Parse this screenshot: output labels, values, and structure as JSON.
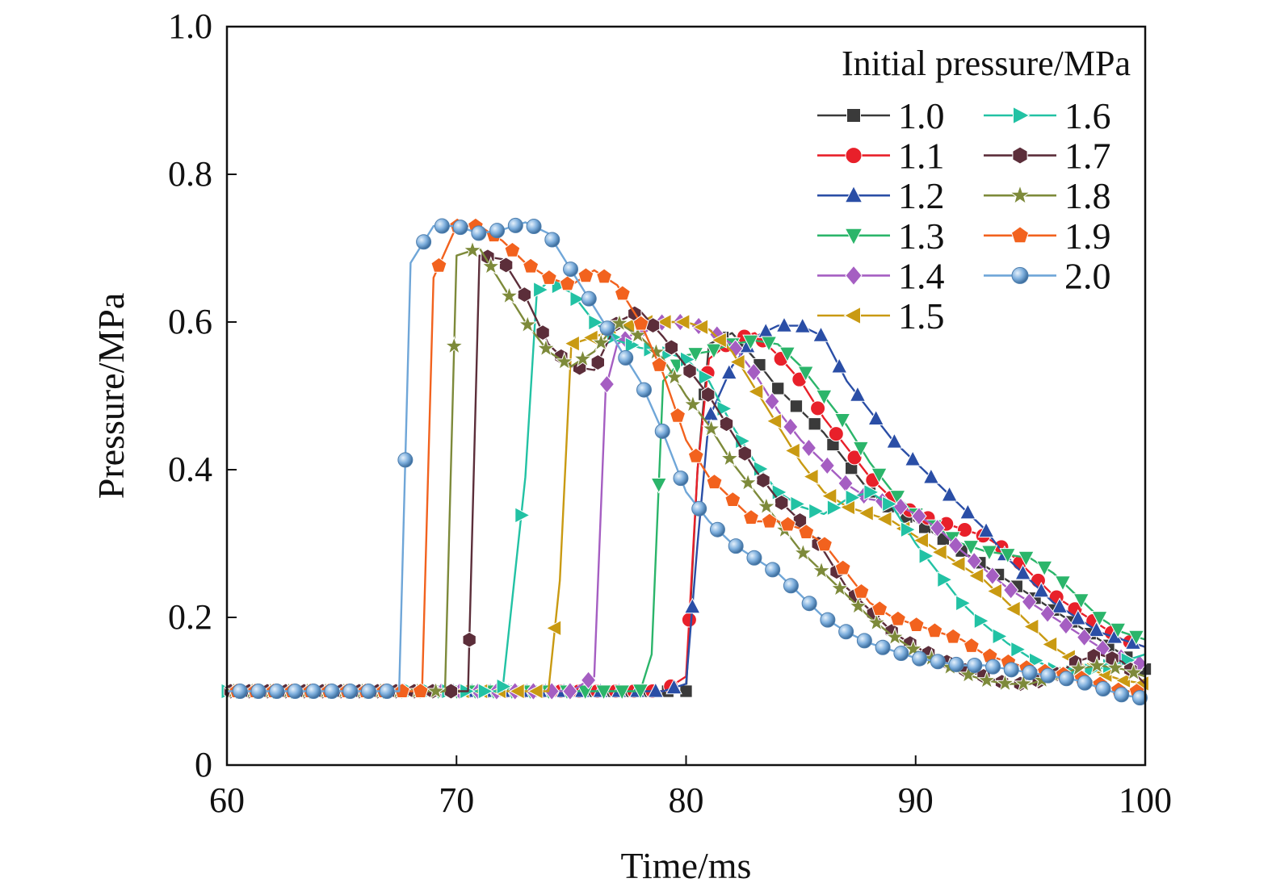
{
  "chart_data": {
    "type": "line",
    "xlabel": "Time/ms",
    "ylabel": "Pressure/MPa",
    "xlim": [
      60,
      100
    ],
    "ylim": [
      0,
      1.0
    ],
    "x_ticks": [
      60,
      70,
      80,
      90,
      100
    ],
    "x_tick_labels": [
      "60",
      "70",
      "80",
      "90",
      "100"
    ],
    "y_ticks": [
      0,
      0.2,
      0.4,
      0.6,
      0.8,
      1.0
    ],
    "y_tick_labels": [
      "0",
      "0.2",
      "0.4",
      "0.6",
      "0.8",
      "1.0"
    ],
    "grid": false,
    "legend": {
      "title": "Initial pressure/MPa",
      "position": "top-right",
      "columns": 2
    },
    "series": [
      {
        "name": "1.0",
        "color": "#3a3a3a",
        "marker": "square",
        "x": [
          60,
          70,
          75,
          79,
          80,
          80.5,
          81,
          82,
          83,
          84,
          85,
          86,
          87,
          88,
          89,
          90,
          91,
          92,
          93,
          94,
          95,
          96,
          97,
          98,
          99,
          100
        ],
        "y": [
          0.1,
          0.1,
          0.1,
          0.1,
          0.1,
          0.4,
          0.57,
          0.585,
          0.55,
          0.51,
          0.48,
          0.45,
          0.41,
          0.37,
          0.345,
          0.33,
          0.31,
          0.29,
          0.27,
          0.25,
          0.23,
          0.21,
          0.19,
          0.17,
          0.15,
          0.13
        ]
      },
      {
        "name": "1.1",
        "color": "#e8202a",
        "marker": "circle",
        "x": [
          60,
          70,
          75,
          79,
          80,
          80.5,
          81,
          82,
          83,
          84,
          85,
          86,
          87,
          88,
          89,
          90,
          91,
          92,
          93,
          94,
          95,
          96,
          97,
          98,
          99,
          100
        ],
        "y": [
          0.1,
          0.1,
          0.1,
          0.1,
          0.12,
          0.4,
          0.55,
          0.575,
          0.585,
          0.555,
          0.52,
          0.47,
          0.43,
          0.39,
          0.36,
          0.34,
          0.33,
          0.32,
          0.31,
          0.29,
          0.26,
          0.23,
          0.21,
          0.19,
          0.17,
          0.16
        ]
      },
      {
        "name": "1.2",
        "color": "#2a4ea6",
        "marker": "triangle-up",
        "x": [
          60,
          70,
          75,
          79,
          80,
          80.5,
          81,
          82,
          83,
          84,
          85,
          86,
          87,
          88,
          89,
          90,
          91,
          92,
          93,
          94,
          95,
          96,
          97,
          98,
          99,
          100
        ],
        "y": [
          0.1,
          0.1,
          0.1,
          0.1,
          0.11,
          0.3,
          0.47,
          0.54,
          0.58,
          0.595,
          0.595,
          0.58,
          0.52,
          0.48,
          0.44,
          0.41,
          0.38,
          0.35,
          0.32,
          0.28,
          0.25,
          0.22,
          0.2,
          0.18,
          0.17,
          0.16
        ]
      },
      {
        "name": "1.3",
        "color": "#2bb56a",
        "marker": "triangle-down",
        "x": [
          60,
          70,
          75,
          78,
          78.5,
          79,
          80,
          81,
          82,
          83,
          84,
          85,
          86,
          87,
          88,
          89,
          90,
          91,
          92,
          93,
          94,
          95,
          96,
          97,
          98,
          99,
          100
        ],
        "y": [
          0.1,
          0.1,
          0.1,
          0.1,
          0.15,
          0.52,
          0.555,
          0.56,
          0.57,
          0.575,
          0.57,
          0.54,
          0.5,
          0.46,
          0.41,
          0.37,
          0.34,
          0.32,
          0.3,
          0.29,
          0.285,
          0.28,
          0.26,
          0.23,
          0.2,
          0.18,
          0.17
        ]
      },
      {
        "name": "1.4",
        "color": "#a55ec2",
        "marker": "diamond",
        "x": [
          60,
          70,
          75,
          76,
          76.5,
          77,
          78,
          79,
          80,
          81,
          82,
          83,
          84,
          85,
          86,
          87,
          88,
          89,
          90,
          91,
          92,
          93,
          94,
          95,
          96,
          97,
          98,
          99,
          100
        ],
        "y": [
          0.1,
          0.1,
          0.1,
          0.12,
          0.51,
          0.57,
          0.59,
          0.6,
          0.6,
          0.59,
          0.57,
          0.53,
          0.48,
          0.44,
          0.41,
          0.38,
          0.36,
          0.355,
          0.34,
          0.32,
          0.29,
          0.265,
          0.24,
          0.22,
          0.2,
          0.18,
          0.16,
          0.145,
          0.135
        ]
      },
      {
        "name": "1.5",
        "color": "#c99a12",
        "marker": "triangle-left",
        "x": [
          60,
          70,
          74,
          74.5,
          75,
          76,
          77,
          78,
          79,
          80,
          81,
          82,
          83,
          84,
          85,
          86,
          87,
          88,
          89,
          90,
          91,
          92,
          93,
          94,
          95,
          96,
          97,
          98,
          99,
          100
        ],
        "y": [
          0.1,
          0.1,
          0.1,
          0.25,
          0.57,
          0.58,
          0.59,
          0.6,
          0.6,
          0.6,
          0.59,
          0.56,
          0.51,
          0.46,
          0.41,
          0.37,
          0.35,
          0.34,
          0.33,
          0.31,
          0.29,
          0.27,
          0.25,
          0.22,
          0.19,
          0.16,
          0.14,
          0.125,
          0.115,
          0.11
        ]
      },
      {
        "name": "1.6",
        "color": "#22c2a4",
        "marker": "triangle-right",
        "x": [
          60,
          70,
          72,
          73,
          73.5,
          74,
          75,
          76,
          77,
          78,
          79,
          80,
          81,
          82,
          83,
          84,
          85,
          86,
          87,
          88,
          89,
          90,
          91,
          92,
          93,
          94,
          95,
          96,
          97,
          98,
          99,
          100
        ],
        "y": [
          0.1,
          0.1,
          0.1,
          0.39,
          0.64,
          0.655,
          0.64,
          0.6,
          0.575,
          0.565,
          0.56,
          0.55,
          0.52,
          0.46,
          0.41,
          0.37,
          0.35,
          0.34,
          0.36,
          0.37,
          0.35,
          0.3,
          0.26,
          0.22,
          0.19,
          0.165,
          0.145,
          0.13,
          0.125,
          0.13,
          0.14,
          0.15
        ]
      },
      {
        "name": "1.7",
        "color": "#5c2e3a",
        "marker": "hexagon",
        "x": [
          60,
          70,
          70.5,
          71,
          72,
          73,
          74,
          75,
          76,
          77,
          78,
          79,
          80,
          81,
          82,
          83,
          84,
          85,
          86,
          87,
          88,
          89,
          90,
          91,
          92,
          93,
          94,
          95,
          96,
          97,
          98,
          99,
          100
        ],
        "y": [
          0.1,
          0.1,
          0.1,
          0.69,
          0.685,
          0.635,
          0.57,
          0.54,
          0.535,
          0.6,
          0.615,
          0.58,
          0.54,
          0.5,
          0.45,
          0.4,
          0.36,
          0.33,
          0.29,
          0.24,
          0.21,
          0.18,
          0.16,
          0.145,
          0.13,
          0.12,
          0.11,
          0.11,
          0.12,
          0.14,
          0.15,
          0.14,
          0.11
        ]
      },
      {
        "name": "1.8",
        "color": "#7d8a3a",
        "marker": "star",
        "x": [
          60,
          69,
          69.5,
          70,
          71,
          72,
          73,
          74,
          75,
          76,
          77,
          78,
          79,
          80,
          81,
          82,
          83,
          84,
          85,
          86,
          87,
          88,
          89,
          90,
          91,
          92,
          93,
          94,
          95,
          96,
          97,
          98,
          99,
          100
        ],
        "y": [
          0.1,
          0.1,
          0.1,
          0.69,
          0.7,
          0.65,
          0.6,
          0.56,
          0.54,
          0.56,
          0.6,
          0.58,
          0.55,
          0.5,
          0.46,
          0.41,
          0.37,
          0.33,
          0.29,
          0.26,
          0.23,
          0.2,
          0.175,
          0.155,
          0.14,
          0.125,
          0.115,
          0.11,
          0.11,
          0.12,
          0.13,
          0.135,
          0.13,
          0.12
        ]
      },
      {
        "name": "1.9",
        "color": "#f2621e",
        "marker": "pentagon",
        "x": [
          60,
          68,
          68.5,
          69,
          70,
          71,
          72,
          73,
          74,
          75,
          76,
          77,
          78,
          79,
          80,
          81,
          82,
          83,
          84,
          85,
          86,
          87,
          88,
          89,
          90,
          91,
          92,
          93,
          94,
          95,
          96,
          97,
          98,
          99,
          100
        ],
        "y": [
          0.1,
          0.1,
          0.1,
          0.66,
          0.73,
          0.73,
          0.71,
          0.68,
          0.66,
          0.65,
          0.67,
          0.65,
          0.6,
          0.53,
          0.44,
          0.39,
          0.36,
          0.33,
          0.33,
          0.32,
          0.3,
          0.26,
          0.22,
          0.2,
          0.19,
          0.18,
          0.17,
          0.15,
          0.14,
          0.13,
          0.125,
          0.12,
          0.11,
          0.1,
          0.1
        ]
      },
      {
        "name": "2.0",
        "color": "#6fa6d8",
        "marker": "sphere",
        "x": [
          60,
          67,
          67.5,
          68,
          69,
          70,
          71,
          72,
          73,
          74,
          75,
          76,
          77,
          78,
          79,
          80,
          81,
          82,
          83,
          84,
          85,
          86,
          87,
          88,
          89,
          90,
          91,
          92,
          93,
          94,
          95,
          96,
          97,
          98,
          99,
          100
        ],
        "y": [
          0.1,
          0.1,
          0.1,
          0.68,
          0.73,
          0.73,
          0.72,
          0.725,
          0.735,
          0.72,
          0.67,
          0.62,
          0.57,
          0.52,
          0.45,
          0.37,
          0.33,
          0.3,
          0.28,
          0.26,
          0.23,
          0.2,
          0.18,
          0.165,
          0.155,
          0.145,
          0.14,
          0.135,
          0.135,
          0.13,
          0.125,
          0.12,
          0.115,
          0.105,
          0.095,
          0.09
        ]
      }
    ]
  }
}
